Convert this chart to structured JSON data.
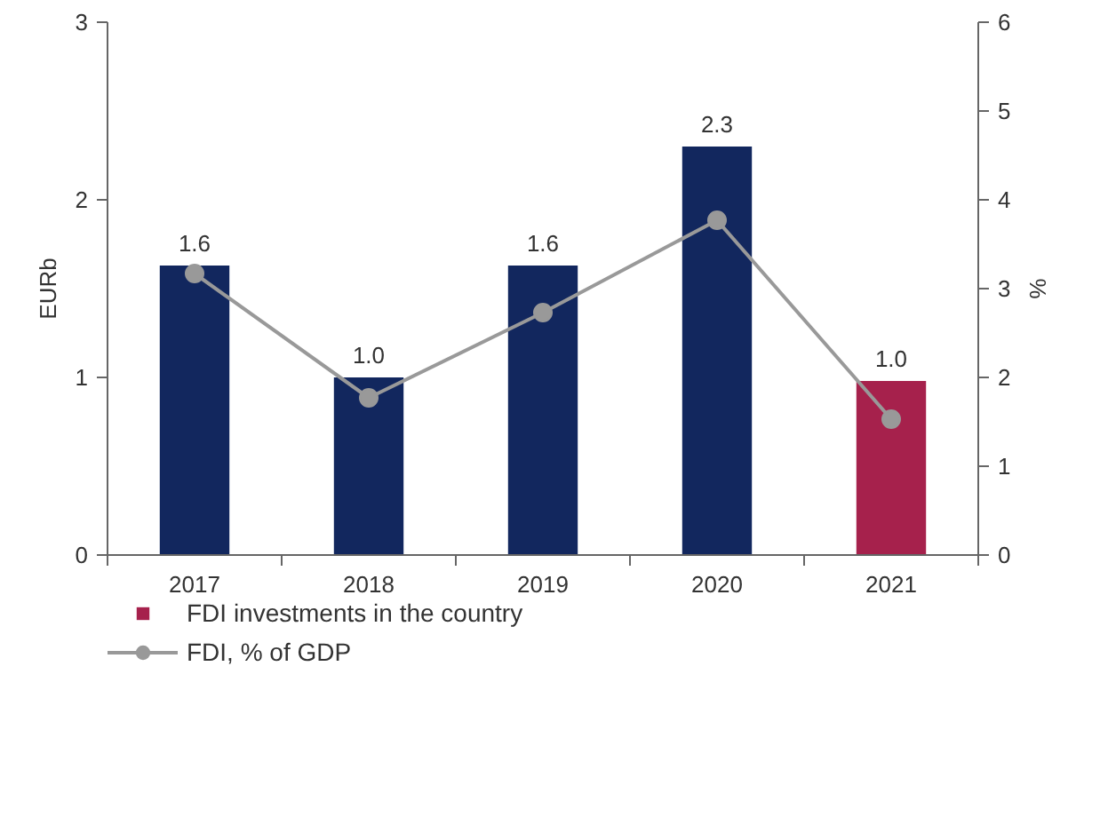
{
  "chart_data": {
    "type": "bar",
    "categories": [
      "2017",
      "2018",
      "2019",
      "2020",
      "2021"
    ],
    "ylabel": "EURb",
    "y2label": "%",
    "ylim": [
      0,
      3
    ],
    "yticks": [
      0,
      1,
      2,
      3
    ],
    "y2lim": [
      0,
      6
    ],
    "y2ticks": [
      0,
      1,
      2,
      3,
      4,
      5,
      6
    ],
    "grid": false,
    "legend": "bottom",
    "series": [
      {
        "name": "FDI investments in the country",
        "colors": [
          "#12275e",
          "#12275e",
          "#12275e",
          "#12275e",
          "#a6214c"
        ],
        "values": [
          1.63,
          1.0,
          1.63,
          2.3,
          0.98
        ],
        "value_labels": [
          "1.6",
          "1.0",
          "1.6",
          "2.3",
          "1.0"
        ]
      },
      {
        "name": "FDI, % of GDP",
        "type": "line",
        "axis": "y2",
        "color": "#999999",
        "marker": "circle",
        "values": [
          3.17,
          1.77,
          2.73,
          3.77,
          1.53
        ]
      }
    ]
  }
}
